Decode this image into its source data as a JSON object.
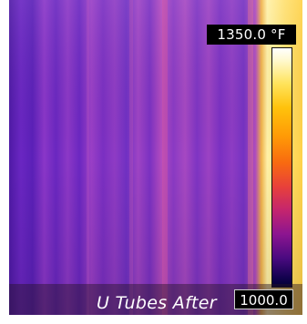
{
  "image": {
    "scene": "thermal infrared image of vertical U tubes",
    "palette": "iron",
    "dominant_color": "#6a2cc4",
    "hot_edge_color": "#fff4a0"
  },
  "scale": {
    "max_label": "1350.0 °F",
    "min_label": "1000.0",
    "colors": [
      "#ffffff",
      "#ffe35a",
      "#ff9a06",
      "#e8413a",
      "#8c1590",
      "#000033"
    ]
  },
  "caption": "U Tubes After"
}
